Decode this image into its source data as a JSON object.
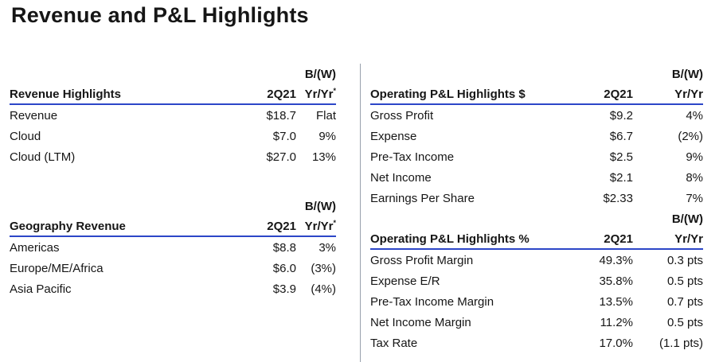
{
  "title": "Revenue and P&L Highlights",
  "colors": {
    "text": "#161616",
    "rule": "#2c46c8",
    "divider": "#99a1ad"
  },
  "tables": {
    "revenue_highlights": {
      "bw": "B/(W)",
      "name": "Revenue Highlights",
      "period": "2Q21",
      "yoy": "Yr/Yr",
      "footnote": "*",
      "rows": [
        {
          "label": "Revenue",
          "period": "$18.7",
          "yoy": "Flat"
        },
        {
          "label": "Cloud",
          "period": "$7.0",
          "yoy": "9%"
        },
        {
          "label": "Cloud (LTM)",
          "period": "$27.0",
          "yoy": "13%"
        }
      ]
    },
    "geography_revenue": {
      "bw": "B/(W)",
      "name": "Geography Revenue",
      "period": "2Q21",
      "yoy": "Yr/Yr",
      "footnote": "*",
      "rows": [
        {
          "label": "Americas",
          "period": "$8.8",
          "yoy": "3%"
        },
        {
          "label": "Europe/ME/Africa",
          "period": "$6.0",
          "yoy": "(3%)"
        },
        {
          "label": "Asia Pacific",
          "period": "$3.9",
          "yoy": "(4%)"
        }
      ]
    },
    "pnl_dollars": {
      "bw": "B/(W)",
      "name": "Operating P&L Highlights $",
      "period": "2Q21",
      "yoy": "Yr/Yr",
      "rows": [
        {
          "label": "Gross Profit",
          "period": "$9.2",
          "yoy": "4%"
        },
        {
          "label": "Expense",
          "period": "$6.7",
          "yoy": "(2%)"
        },
        {
          "label": "Pre-Tax Income",
          "period": "$2.5",
          "yoy": "9%"
        },
        {
          "label": "Net Income",
          "period": "$2.1",
          "yoy": "8%"
        },
        {
          "label": "Earnings Per Share",
          "period": "$2.33",
          "yoy": "7%"
        }
      ]
    },
    "pnl_percent": {
      "bw": "B/(W)",
      "name": "Operating P&L Highlights %",
      "period": "2Q21",
      "yoy": "Yr/Yr",
      "rows": [
        {
          "label": "Gross Profit Margin",
          "period": "49.3%",
          "yoy": "0.3 pts"
        },
        {
          "label": "Expense E/R",
          "period": "35.8%",
          "yoy": "0.5 pts"
        },
        {
          "label": "Pre-Tax Income Margin",
          "period": "13.5%",
          "yoy": "0.7 pts"
        },
        {
          "label": "Net Income Margin",
          "period": "11.2%",
          "yoy": "0.5 pts"
        },
        {
          "label": "Tax Rate",
          "period": "17.0%",
          "yoy": "(1.1 pts)"
        }
      ]
    }
  }
}
